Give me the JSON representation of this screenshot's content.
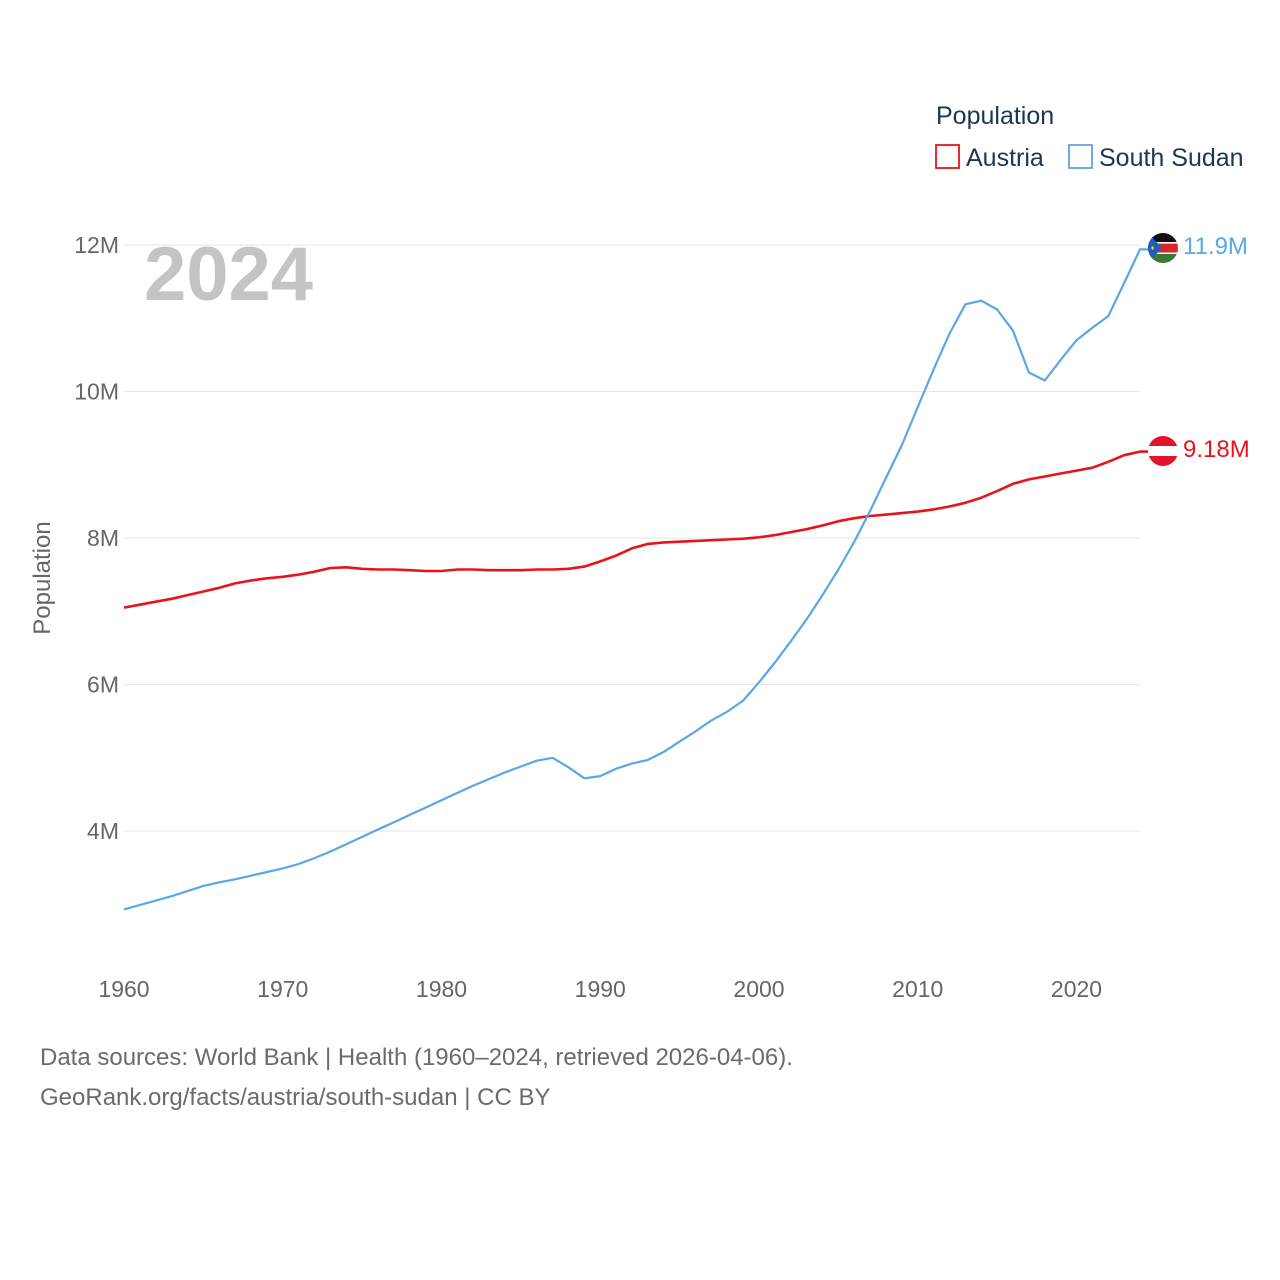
{
  "chart_data": {
    "type": "line",
    "year_display": "2024",
    "ylabel": "Population",
    "xlabel": "",
    "legend": {
      "title": "Population",
      "position": "top-right"
    },
    "x_ticks": [
      1960,
      1970,
      1980,
      1990,
      2000,
      2010,
      2020
    ],
    "x_tick_labels": [
      "1960",
      "1970",
      "1980",
      "1990",
      "2000",
      "2010",
      "2020"
    ],
    "xlim": [
      1960,
      2024
    ],
    "y_ticks": [
      4000000,
      6000000,
      8000000,
      10000000,
      12000000
    ],
    "y_tick_labels": [
      "4M",
      "6M",
      "8M",
      "10M",
      "12M"
    ],
    "ylim": [
      2600000,
      12000000
    ],
    "grid": true,
    "x": [
      1960,
      1961,
      1962,
      1963,
      1964,
      1965,
      1966,
      1967,
      1968,
      1969,
      1970,
      1971,
      1972,
      1973,
      1974,
      1975,
      1976,
      1977,
      1978,
      1979,
      1980,
      1981,
      1982,
      1983,
      1984,
      1985,
      1986,
      1987,
      1988,
      1989,
      1990,
      1991,
      1992,
      1993,
      1994,
      1995,
      1996,
      1997,
      1998,
      1999,
      2000,
      2001,
      2002,
      2003,
      2004,
      2005,
      2006,
      2007,
      2008,
      2009,
      2010,
      2011,
      2012,
      2013,
      2014,
      2015,
      2016,
      2017,
      2018,
      2019,
      2020,
      2021,
      2022,
      2023,
      2024
    ],
    "series": [
      {
        "name": "Austria",
        "color": "#e8141b",
        "end_label": "9.18M",
        "flag": "austria-flag-icon",
        "values": [
          7050000,
          7090000,
          7130000,
          7170000,
          7220000,
          7270000,
          7320000,
          7380000,
          7420000,
          7450000,
          7470000,
          7500000,
          7540000,
          7590000,
          7600000,
          7580000,
          7570000,
          7570000,
          7560000,
          7550000,
          7550000,
          7570000,
          7570000,
          7560000,
          7560000,
          7560000,
          7570000,
          7570000,
          7580000,
          7610000,
          7680000,
          7760000,
          7860000,
          7920000,
          7940000,
          7950000,
          7960000,
          7970000,
          7980000,
          7990000,
          8010000,
          8040000,
          8080000,
          8120000,
          8170000,
          8230000,
          8270000,
          8300000,
          8320000,
          8340000,
          8360000,
          8390000,
          8430000,
          8480000,
          8550000,
          8640000,
          8740000,
          8800000,
          8840000,
          8880000,
          8920000,
          8960000,
          9040000,
          9130000,
          9180000
        ]
      },
      {
        "name": "South Sudan",
        "color": "#5ba6e5",
        "end_label": "11.9M",
        "flag": "south-sudan-flag-icon",
        "values": [
          2930000,
          2990000,
          3050000,
          3110000,
          3180000,
          3250000,
          3300000,
          3340000,
          3390000,
          3440000,
          3490000,
          3550000,
          3630000,
          3720000,
          3820000,
          3920000,
          4020000,
          4120000,
          4220000,
          4320000,
          4420000,
          4520000,
          4620000,
          4710000,
          4800000,
          4880000,
          4960000,
          5000000,
          4870000,
          4720000,
          4750000,
          4850000,
          4920000,
          4970000,
          5080000,
          5220000,
          5360000,
          5510000,
          5630000,
          5780000,
          6030000,
          6300000,
          6590000,
          6890000,
          7220000,
          7570000,
          7950000,
          8370000,
          8820000,
          9270000,
          9790000,
          10300000,
          10790000,
          11190000,
          11240000,
          11120000,
          10830000,
          10260000,
          10150000,
          10430000,
          10700000,
          10870000,
          11030000,
          11480000,
          11940000
        ]
      }
    ]
  },
  "footer": {
    "source_line": "Data sources: World Bank | Health (1960–2024, retrieved 2026-04-06).",
    "url_line": "GeoRank.org/facts/austria/south-sudan | CC BY"
  }
}
